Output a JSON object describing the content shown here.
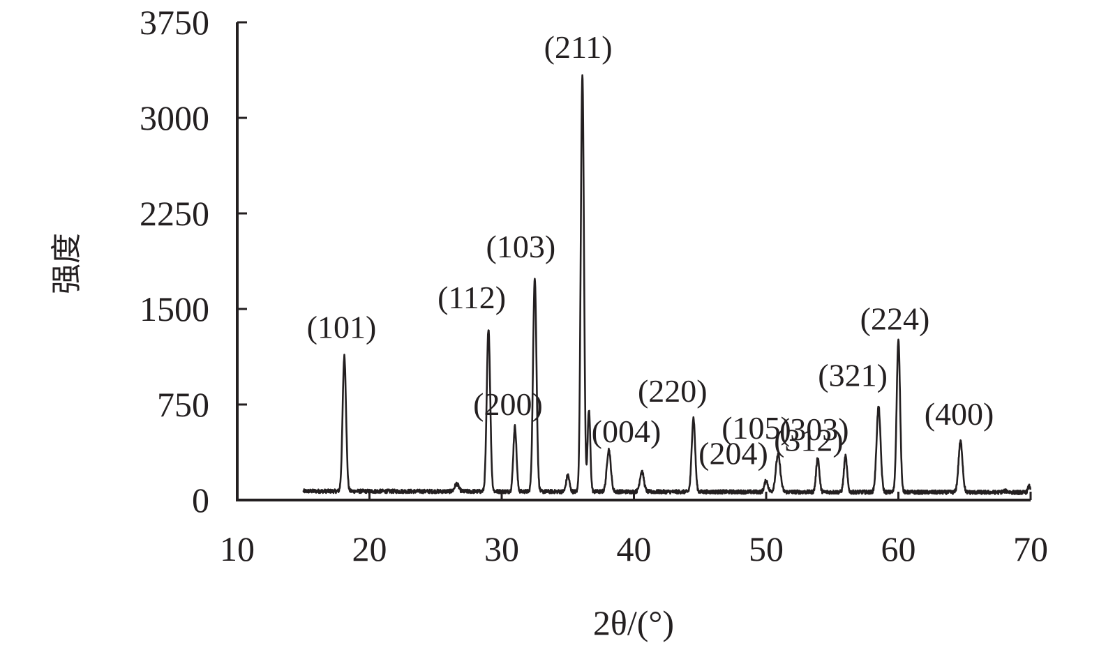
{
  "chart_data": {
    "type": "line",
    "title": "",
    "xlabel": "2θ/(°)",
    "ylabel": "强度",
    "xlim": [
      10,
      70
    ],
    "ylim": [
      0,
      3750
    ],
    "x_ticks": [
      10,
      20,
      30,
      40,
      50,
      60,
      70
    ],
    "y_ticks": [
      0,
      750,
      1500,
      2250,
      3000,
      3750
    ],
    "grid": false,
    "line_color": "#231f20",
    "baseline": 60,
    "x_start": 15,
    "x_end": 70,
    "peaks": [
      {
        "x": 18.1,
        "y": 1120,
        "w": 0.13,
        "label": "(101)"
      },
      {
        "x": 26.6,
        "y": 120,
        "w": 0.15,
        "label": ""
      },
      {
        "x": 29.0,
        "y": 1340,
        "w": 0.13,
        "label": "(112)"
      },
      {
        "x": 31.0,
        "y": 570,
        "w": 0.12,
        "label": "(200)"
      },
      {
        "x": 32.5,
        "y": 1740,
        "w": 0.13,
        "label": "(103)"
      },
      {
        "x": 35.0,
        "y": 190,
        "w": 0.12,
        "label": ""
      },
      {
        "x": 36.1,
        "y": 3340,
        "w": 0.12,
        "label": "(211)"
      },
      {
        "x": 36.6,
        "y": 700,
        "w": 0.1,
        "label": ""
      },
      {
        "x": 38.1,
        "y": 390,
        "w": 0.15,
        "label": "(004)"
      },
      {
        "x": 40.6,
        "y": 220,
        "w": 0.15,
        "label": ""
      },
      {
        "x": 44.5,
        "y": 640,
        "w": 0.13,
        "label": "(220)"
      },
      {
        "x": 50.0,
        "y": 150,
        "w": 0.13,
        "label": "(204)"
      },
      {
        "x": 50.9,
        "y": 350,
        "w": 0.17,
        "label": "(105)"
      },
      {
        "x": 53.9,
        "y": 330,
        "w": 0.12,
        "label": "(312)"
      },
      {
        "x": 56.0,
        "y": 340,
        "w": 0.12,
        "label": "(303)"
      },
      {
        "x": 58.5,
        "y": 730,
        "w": 0.15,
        "label": "(321)"
      },
      {
        "x": 60.0,
        "y": 1250,
        "w": 0.13,
        "label": "(224)"
      },
      {
        "x": 64.7,
        "y": 460,
        "w": 0.15,
        "label": "(400)"
      },
      {
        "x": 68.1,
        "y": 70,
        "w": 0.2,
        "label": ""
      },
      {
        "x": 69.9,
        "y": 110,
        "w": 0.1,
        "label": ""
      }
    ]
  }
}
